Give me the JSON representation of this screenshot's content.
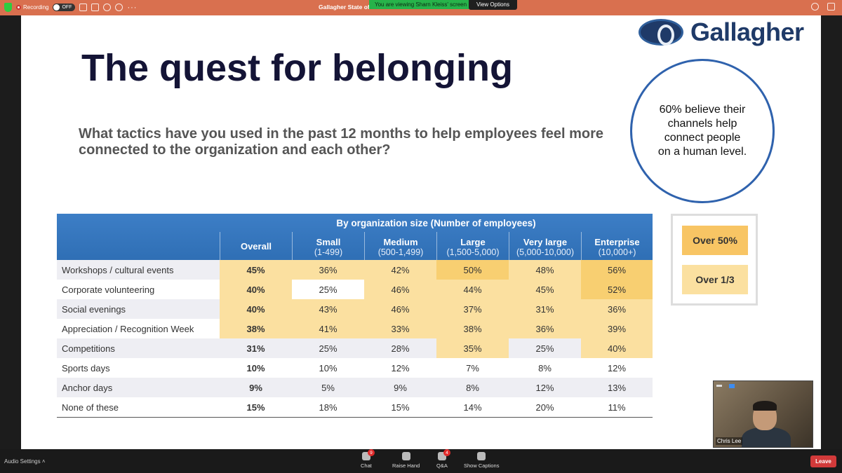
{
  "topbar": {
    "recording_label": "Recording",
    "toggle_label": "OFF",
    "document_title": "Gallagher State of the Sector 2023 ...",
    "viewing_banner": "You are viewing Sharn Kleiss' screen",
    "view_options_label": "View Options"
  },
  "slide": {
    "brand": "Gallagher",
    "title": "The quest for belonging",
    "question": "What tactics have you used in the past 12 months to help employees feel more connected to the organization and each other?",
    "callout": "60% believe their channels help connect people on a human level.",
    "table": {
      "group_header": "By organization size (Number of employees)",
      "columns": [
        {
          "name": "Overall",
          "sub": ""
        },
        {
          "name": "Small",
          "sub": "(1-499)"
        },
        {
          "name": "Medium",
          "sub": "(500-1,499)"
        },
        {
          "name": "Large",
          "sub": "(1,500-5,000)"
        },
        {
          "name": "Very large",
          "sub": "(5,000-10,000)"
        },
        {
          "name": "Enterprise",
          "sub": "(10,000+)"
        }
      ],
      "rows": [
        {
          "label": "Workshops / cultural events",
          "values": [
            "45%",
            "36%",
            "42%",
            "50%",
            "48%",
            "56%"
          ],
          "highlight": [
            "h2",
            "h2",
            "h2",
            "h1",
            "h2",
            "h1"
          ]
        },
        {
          "label": "Corporate volunteering",
          "values": [
            "40%",
            "25%",
            "46%",
            "44%",
            "45%",
            "52%"
          ],
          "highlight": [
            "h2",
            "w",
            "h2",
            "h2",
            "h2",
            "h1"
          ]
        },
        {
          "label": "Social evenings",
          "values": [
            "40%",
            "43%",
            "46%",
            "37%",
            "31%",
            "36%"
          ],
          "highlight": [
            "h2",
            "h2",
            "h2",
            "h2",
            "h2",
            "h2"
          ]
        },
        {
          "label": "Appreciation / Recognition Week",
          "values": [
            "38%",
            "41%",
            "33%",
            "38%",
            "36%",
            "39%"
          ],
          "highlight": [
            "h2",
            "h2",
            "h2",
            "h2",
            "h2",
            "h2"
          ]
        },
        {
          "label": "Competitions",
          "values": [
            "31%",
            "25%",
            "28%",
            "35%",
            "25%",
            "40%"
          ],
          "highlight": [
            "",
            "",
            "",
            "h2",
            "",
            "h2"
          ]
        },
        {
          "label": "Sports days",
          "values": [
            "10%",
            "10%",
            "12%",
            "7%",
            "8%",
            "12%"
          ],
          "highlight": [
            "",
            "",
            "",
            "",
            "",
            ""
          ]
        },
        {
          "label": "Anchor days",
          "values": [
            "9%",
            "5%",
            "9%",
            "8%",
            "12%",
            "13%"
          ],
          "highlight": [
            "",
            "",
            "",
            "",
            "",
            ""
          ]
        },
        {
          "label": "None of these",
          "values": [
            "15%",
            "18%",
            "15%",
            "14%",
            "20%",
            "11%"
          ],
          "highlight": [
            "",
            "",
            "",
            "",
            "",
            ""
          ]
        }
      ]
    },
    "legend": {
      "over_half": "Over 50%",
      "over_third": "Over 1/3",
      "over_half_color": "#f8c564",
      "over_third_color": "#fbe0a0"
    }
  },
  "video": {
    "participant_name": "Chris Lee"
  },
  "bottombar": {
    "audio_settings": "Audio Settings",
    "chat": "Chat",
    "chat_badge": "9",
    "raise_hand": "Raise Hand",
    "qa": "Q&A",
    "qa_badge": "4",
    "captions": "Show Captions",
    "leave": "Leave"
  }
}
